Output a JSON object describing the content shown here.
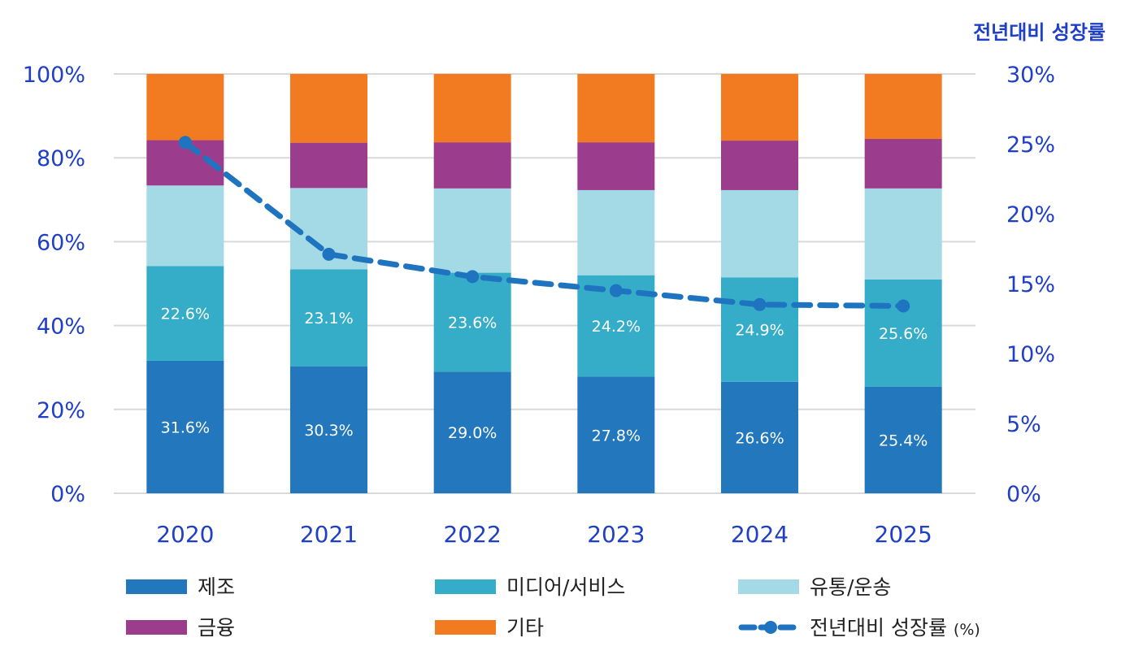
{
  "chart_data": {
    "type": "bar",
    "stacked": true,
    "categories": [
      "2020",
      "2021",
      "2022",
      "2023",
      "2024",
      "2025"
    ],
    "series": [
      {
        "name": "제조",
        "color": "#2277bd",
        "values": [
          31.6,
          30.3,
          29.0,
          27.8,
          26.6,
          25.4
        ],
        "labels": [
          "31.6%",
          "30.3%",
          "29.0%",
          "27.8%",
          "26.6%",
          "25.4%"
        ]
      },
      {
        "name": "미디어/서비스",
        "color": "#35adc8",
        "values": [
          22.6,
          23.1,
          23.6,
          24.2,
          24.9,
          25.6
        ],
        "labels": [
          "22.6%",
          "23.1%",
          "23.6%",
          "24.2%",
          "24.9%",
          "25.6%"
        ]
      },
      {
        "name": "유통/운송",
        "color": "#a3dae6",
        "values": [
          19.2,
          19.4,
          20.1,
          20.3,
          20.8,
          21.7
        ]
      },
      {
        "name": "금융",
        "color": "#9c3c8c",
        "values": [
          10.8,
          10.8,
          11.0,
          11.4,
          11.8,
          11.8
        ]
      },
      {
        "name": "기타",
        "color": "#f27b21",
        "values": [
          15.8,
          16.4,
          16.3,
          16.3,
          15.9,
          15.5
        ]
      }
    ],
    "line": {
      "name": "전년대비 성장률",
      "legend_suffix": "(%)",
      "color": "#1f74c0",
      "style": "dashed",
      "axis": "right",
      "values": [
        25.1,
        17.1,
        15.5,
        14.5,
        13.5,
        13.4
      ]
    },
    "left_axis": {
      "ylim": [
        0,
        100
      ],
      "ticks": [
        "0%",
        "20%",
        "40%",
        "60%",
        "80%",
        "100%"
      ]
    },
    "right_axis": {
      "title": "전년대비 성장률",
      "ylim": [
        0,
        30
      ],
      "ticks": [
        "0%",
        "5%",
        "10%",
        "15%",
        "20%",
        "25%",
        "30%"
      ]
    },
    "grid": true,
    "legend_position": "bottom"
  }
}
